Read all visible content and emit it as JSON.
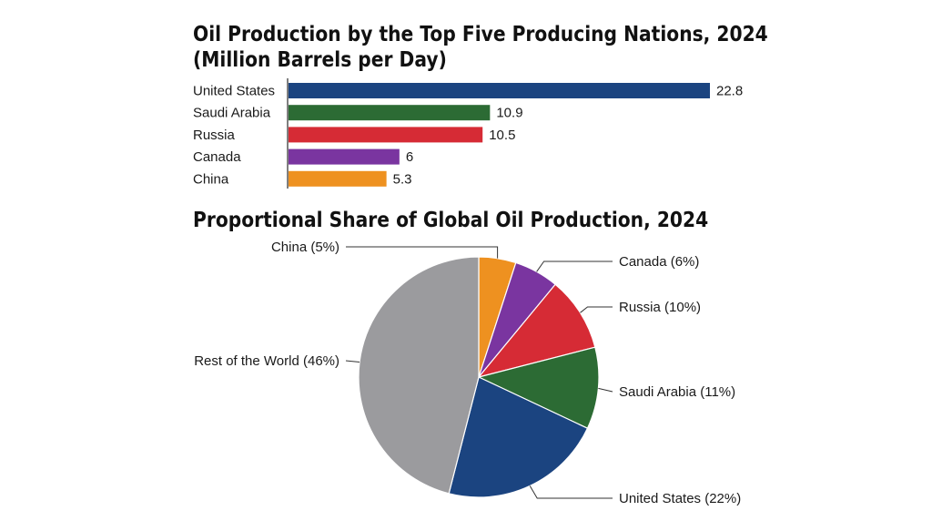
{
  "chart_data": [
    {
      "type": "bar",
      "orientation": "horizontal",
      "title": "Oil Production by the Top Five Producing Nations, 2024",
      "subtitle": "(Million Barrels per Day)",
      "categories": [
        "United States",
        "Saudi Arabia",
        "Russia",
        "Canada",
        "China"
      ],
      "values": [
        22.8,
        10.9,
        10.5,
        6,
        5.3
      ],
      "value_labels": [
        "22.8",
        "10.9",
        "10.5",
        "6",
        "5.3"
      ],
      "colors": [
        "#1b4480",
        "#2c6b34",
        "#d62b35",
        "#7a35a0",
        "#ee9120"
      ],
      "xlim": [
        0,
        22.8
      ],
      "grid": false,
      "data_labels": true
    },
    {
      "type": "pie",
      "title": "Proportional Share of Global Oil Production, 2024",
      "slices": [
        {
          "label": "China (5%)",
          "value": 5,
          "color": "#ee9120"
        },
        {
          "label": "Canada (6%)",
          "value": 6,
          "color": "#7a35a0"
        },
        {
          "label": "Russia (10%)",
          "value": 10,
          "color": "#d62b35"
        },
        {
          "label": "Saudi Arabia (11%)",
          "value": 11,
          "color": "#2c6b34"
        },
        {
          "label": "United States (22%)",
          "value": 22,
          "color": "#1b4480"
        },
        {
          "label": "Rest of the World (46%)",
          "value": 46,
          "color": "#9b9b9e"
        }
      ],
      "start_angle": "top",
      "direction": "clockwise"
    }
  ]
}
